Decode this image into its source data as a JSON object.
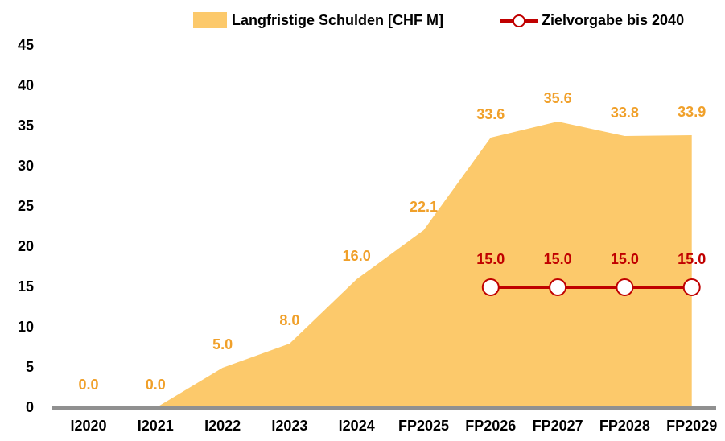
{
  "chart_data": {
    "type": "area",
    "categories": [
      "I2020",
      "I2021",
      "I2022",
      "I2023",
      "I2024",
      "FP2025",
      "FP2026",
      "FP2027",
      "FP2028",
      "FP2029"
    ],
    "series": [
      {
        "name": "Langfristige Schulden [CHF M]",
        "type": "area",
        "color": "#fcc96b",
        "label_color": "#f0a02a",
        "values": [
          0,
          0,
          5,
          8,
          16,
          22.1,
          33.6,
          35.6,
          33.8,
          33.9
        ],
        "value_labels": [
          "0.0",
          "0.0",
          "5.0",
          "8.0",
          "16.0",
          "22.1",
          "33.6",
          "35.6",
          "33.8",
          "33.9"
        ]
      },
      {
        "name": "Zielvorgabe bis 2040",
        "type": "line",
        "color": "#c00000",
        "label_color": "#c00000",
        "values": [
          null,
          null,
          null,
          null,
          null,
          null,
          15,
          15,
          15,
          15
        ],
        "value_labels": [
          null,
          null,
          null,
          null,
          null,
          null,
          "15.0",
          "15.0",
          "15.0",
          "15.0"
        ]
      }
    ],
    "ylim": [
      0,
      45
    ],
    "yticks": [
      0,
      5,
      10,
      15,
      20,
      25,
      30,
      35,
      40,
      45
    ],
    "grid": false,
    "legend": "top"
  }
}
